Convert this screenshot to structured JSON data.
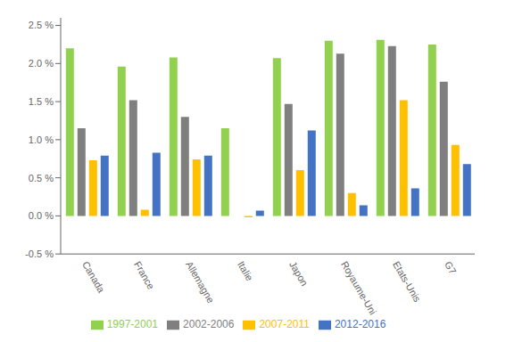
{
  "chart_data": {
    "type": "bar",
    "categories": [
      "Canada",
      "France",
      "Allemagne",
      "Italie",
      "Japon",
      "Royaume-Uni",
      "Etats-Unis",
      "G7"
    ],
    "series": [
      {
        "name": "1997-2001",
        "color": "#92D050",
        "values": [
          2.2,
          1.96,
          2.08,
          1.15,
          2.07,
          2.3,
          2.31,
          2.25
        ]
      },
      {
        "name": "2002-2006",
        "color": "#7F7F7F",
        "values": [
          1.15,
          1.52,
          1.3,
          0.0,
          1.47,
          2.13,
          2.23,
          1.76
        ]
      },
      {
        "name": "2007-2011",
        "color": "#FFC000",
        "values": [
          0.73,
          0.08,
          0.74,
          -0.02,
          0.6,
          0.3,
          1.52,
          0.93
        ]
      },
      {
        "name": "2012-2016",
        "color": "#4472C4",
        "values": [
          0.79,
          0.83,
          0.79,
          0.07,
          1.12,
          0.14,
          0.36,
          0.68
        ]
      }
    ],
    "ylim": [
      -0.5,
      2.6
    ],
    "yticks": [
      {
        "value": -0.5,
        "label": "-0.5 %"
      },
      {
        "value": 0.0,
        "label": "0.0 %"
      },
      {
        "value": 0.5,
        "label": "0.5 %"
      },
      {
        "value": 1.0,
        "label": "1.0 %"
      },
      {
        "value": 1.5,
        "label": "1.5 %"
      },
      {
        "value": 2.0,
        "label": "2.0 %"
      },
      {
        "value": 2.5,
        "label": "2.5 %"
      }
    ],
    "grid": false,
    "legend": "bottom"
  }
}
